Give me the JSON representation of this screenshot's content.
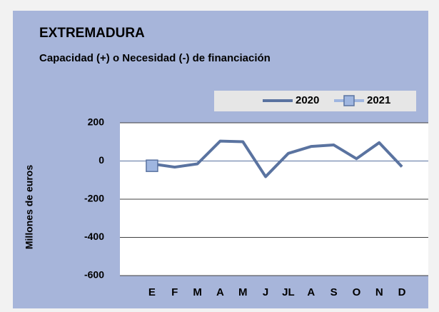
{
  "chart_data": {
    "type": "line",
    "title": "EXTREMADURA",
    "subtitle": "Capacidad (+) o Necesidad (-) de financiación",
    "y_label": "Millones de euros",
    "categories": [
      "E",
      "F",
      "M",
      "A",
      "M",
      "J",
      "JL",
      "A",
      "S",
      "O",
      "N",
      "D"
    ],
    "series": [
      {
        "name": "2020",
        "color": "#5a73a0",
        "values": [
          -15,
          -32,
          -15,
          104,
          101,
          -82,
          40,
          76,
          84,
          12,
          96,
          -30
        ]
      },
      {
        "name": "2021",
        "color": "#9fb6e0",
        "values": [
          -25,
          null,
          null,
          null,
          null,
          null,
          null,
          null,
          null,
          null,
          null,
          null
        ]
      }
    ],
    "ylim": [
      -600,
      200
    ],
    "yticks": [
      -600,
      -400,
      -200,
      0,
      200
    ],
    "grid": true
  }
}
